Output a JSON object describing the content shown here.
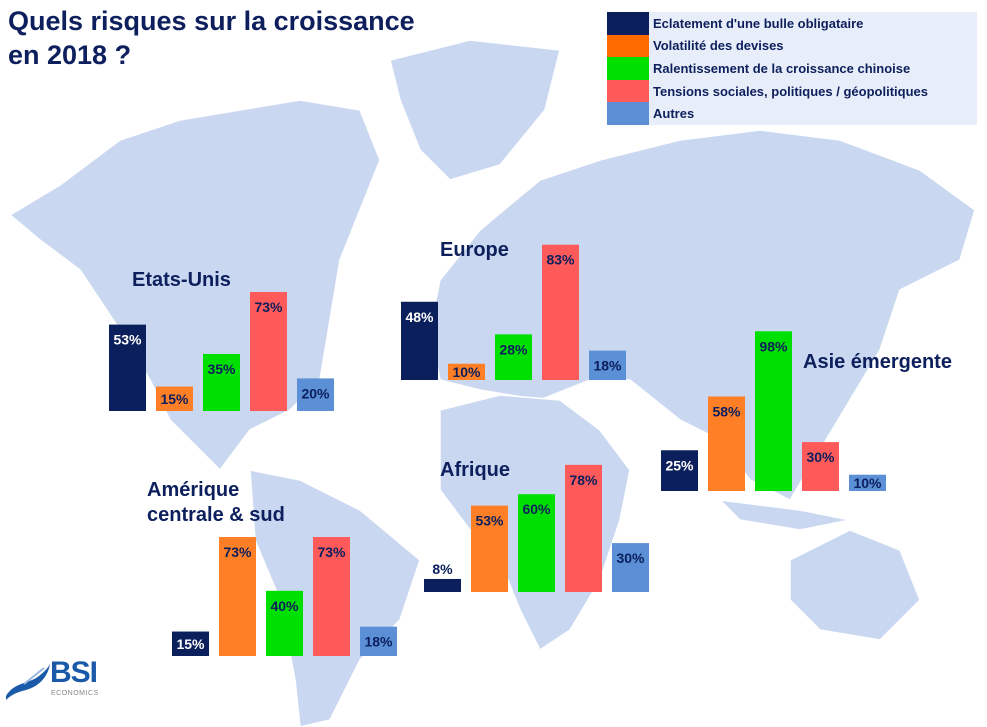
{
  "title_lines": [
    "Quels risques sur la croissance",
    "en 2018 ?"
  ],
  "logo": {
    "name": "BSI",
    "sub": "ECONOMICS"
  },
  "chart_data": {
    "type": "bar",
    "title": "Quels risques sur la croissance en 2018 ?",
    "unit": "%",
    "legend_placement": "top-right",
    "series_names": [
      "Eclatement d'une bulle obligataire",
      "Volatilité des devises",
      "Ralentissement de la croissance chinoise",
      "Tensions sociales, politiques / géopolitiques",
      "Autres"
    ],
    "colors": [
      "#0b1f5c",
      "#ff7f27",
      "#00e000",
      "#ff5a5a",
      "#5b8fd6"
    ],
    "regions": [
      {
        "name": "Etats-Unis",
        "values": [
          53,
          15,
          35,
          73,
          20
        ]
      },
      {
        "name": "Europe",
        "values": [
          48,
          10,
          28,
          83,
          18
        ]
      },
      {
        "name": "Asie émergente",
        "values": [
          25,
          58,
          98,
          30,
          10
        ]
      },
      {
        "name": "Afrique",
        "values": [
          8,
          53,
          60,
          78,
          30
        ]
      },
      {
        "name": "Amérique centrale & sud",
        "values": [
          15,
          73,
          40,
          73,
          18
        ]
      }
    ]
  }
}
